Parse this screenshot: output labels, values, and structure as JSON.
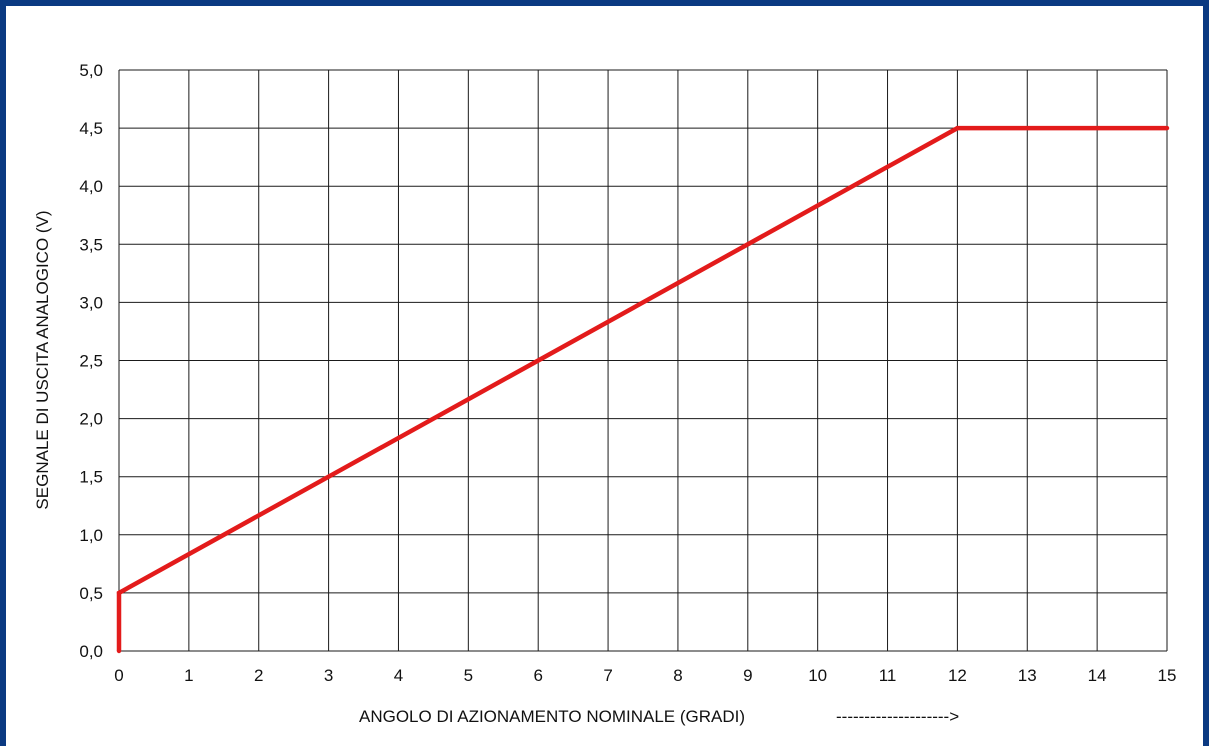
{
  "chart_data": {
    "type": "line",
    "title": "",
    "xlabel": "ANGOLO DI AZIONAMENTO NOMINALE (GRADI)",
    "xlabel_arrow": "-------------------->",
    "ylabel": "SEGNALE DI USCITA ANALOGICO (V)",
    "xlim": [
      0,
      15
    ],
    "ylim": [
      0,
      5
    ],
    "x_ticks": [
      "0",
      "1",
      "2",
      "3",
      "4",
      "5",
      "6",
      "7",
      "8",
      "9",
      "10",
      "11",
      "12",
      "13",
      "14",
      "15"
    ],
    "y_ticks": [
      "0,0",
      "0,5",
      "1,0",
      "1,5",
      "2,0",
      "2,5",
      "3,0",
      "3,5",
      "4,0",
      "4,5",
      "5,0"
    ],
    "grid": true,
    "series": [
      {
        "color": "#e31b1b",
        "x": [
          0,
          0,
          12,
          15
        ],
        "y": [
          0,
          0.5,
          4.5,
          4.5
        ]
      }
    ]
  },
  "colors": {
    "frame": "#0b3a82",
    "grid": "#1a1a1a",
    "line": "#e31b1b"
  }
}
